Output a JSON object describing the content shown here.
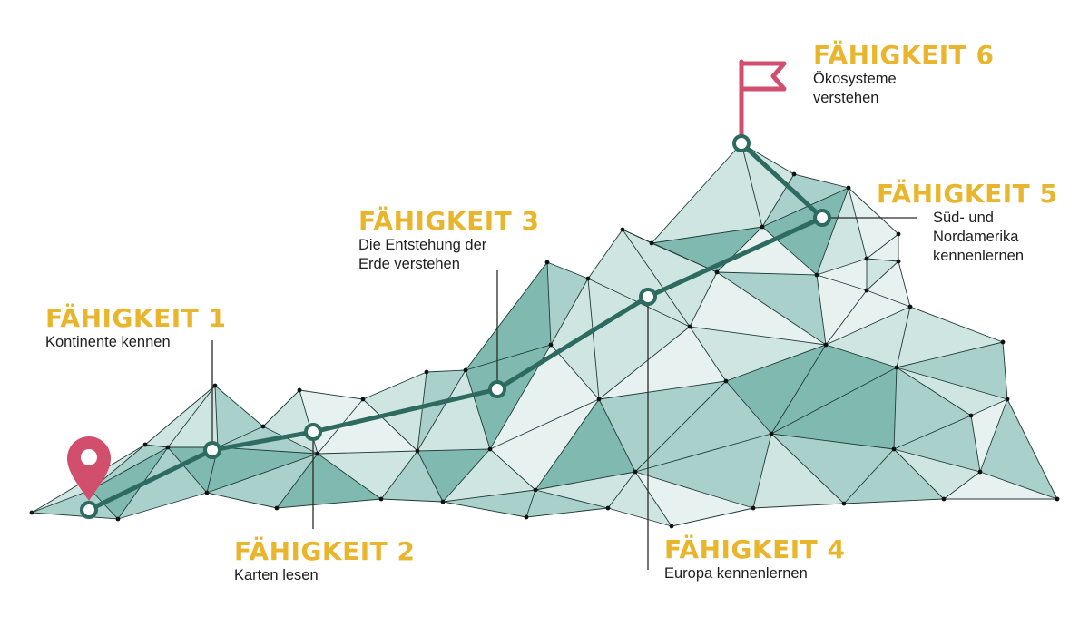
{
  "colors": {
    "facet_dark": "#7fb9b0",
    "facet_mid": "#a9d0ca",
    "facet_light": "#cfe5e1",
    "facet_pale": "#e7f2f0",
    "edge": "#1f3b38",
    "path": "#2d6a60",
    "flag": "#d14f6c",
    "title": "#e8b52c",
    "text": "#1e1e1e"
  },
  "start_icon": "map-pin-icon",
  "goal_icon": "flag-icon",
  "milestones": [
    {
      "title": "FÄHIGKEIT 1",
      "lines": [
        "Kontinente kennen"
      ]
    },
    {
      "title": "FÄHIGKEIT 2",
      "lines": [
        "Karten lesen"
      ]
    },
    {
      "title": "FÄHIGKEIT 3",
      "lines": [
        "Die Entstehung der",
        "Erde verstehen"
      ]
    },
    {
      "title": "FÄHIGKEIT 4",
      "lines": [
        "Europa kennenlernen"
      ]
    },
    {
      "title": "FÄHIGKEIT 5",
      "lines": [
        "Süd- und",
        "Nordamerika",
        "kennenlernen"
      ]
    },
    {
      "title": "FÄHIGKEIT 6",
      "lines": [
        "Ökosysteme",
        "verstehen"
      ]
    }
  ]
}
